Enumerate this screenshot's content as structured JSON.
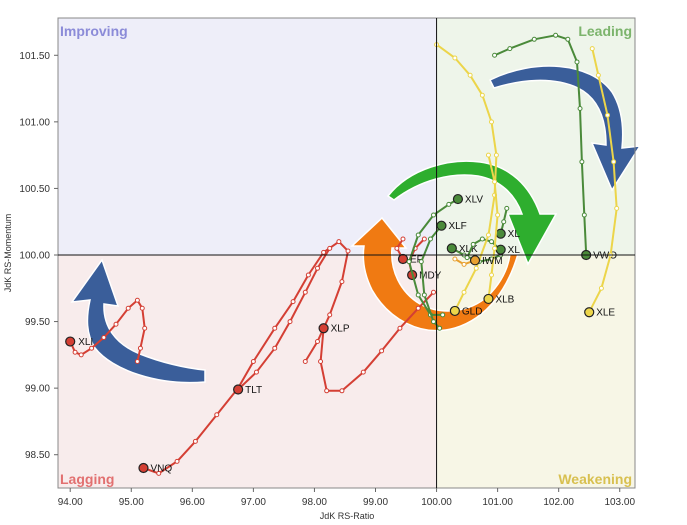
{
  "chart_data": {
    "type": "scatter",
    "title": "",
    "xlabel": "JdK RS-Ratio",
    "ylabel": "JdK RS-Momentum",
    "xlim": [
      93.8,
      103.25
    ],
    "ylim": [
      98.25,
      101.78
    ],
    "x_ticks": [
      "94.00",
      "95.00",
      "96.00",
      "97.00",
      "98.00",
      "99.00",
      "100.00",
      "101.00",
      "102.00",
      "103.00"
    ],
    "x_tick_values": [
      94,
      95,
      96,
      97,
      98,
      99,
      100,
      101,
      102,
      103
    ],
    "y_ticks": [
      "98.50",
      "99.00",
      "99.50",
      "100.00",
      "100.50",
      "101.00",
      "101.50"
    ],
    "y_tick_values": [
      98.5,
      99.0,
      99.5,
      100.0,
      100.5,
      101.0,
      101.5
    ],
    "center": [
      100,
      100
    ],
    "grid": false,
    "quadrants": {
      "improving": {
        "label": "Improving",
        "color": "#8b8bd8",
        "bg": "#eeeef9"
      },
      "leading": {
        "label": "Leading",
        "color": "#7cb46c",
        "bg": "#eef5ea"
      },
      "weakening": {
        "label": "Weakening",
        "color": "#d8c050",
        "bg": "#f7f6e6"
      },
      "lagging": {
        "label": "Lagging",
        "color": "#e27070",
        "bg": "#f8ecec"
      }
    },
    "colors": {
      "red": "#d43f34",
      "green": "#4a8a3a",
      "yellow": "#ecd54a",
      "orange": "#e8a030"
    },
    "series": [
      {
        "name": "XLI",
        "color": "red",
        "label_dx": 8,
        "points": [
          [
            94.0,
            99.35
          ],
          [
            94.08,
            99.27
          ],
          [
            94.18,
            99.25
          ],
          [
            94.35,
            99.3
          ],
          [
            94.55,
            99.38
          ],
          [
            94.75,
            99.48
          ],
          [
            94.95,
            99.6
          ],
          [
            95.1,
            99.66
          ],
          [
            95.18,
            99.6
          ],
          [
            95.22,
            99.45
          ],
          [
            95.15,
            99.3
          ],
          [
            95.1,
            99.2
          ]
        ]
      },
      {
        "name": "VNQ",
        "color": "red",
        "label_dx": 7,
        "points": [
          [
            95.2,
            98.4
          ],
          [
            95.45,
            98.36
          ],
          [
            95.75,
            98.45
          ],
          [
            96.05,
            98.6
          ],
          [
            96.4,
            98.8
          ],
          [
            96.75,
            99.0
          ],
          [
            97.0,
            99.2
          ],
          [
            97.35,
            99.45
          ],
          [
            97.65,
            99.65
          ],
          [
            97.9,
            99.85
          ],
          [
            98.15,
            100.02
          ],
          [
            98.4,
            100.1
          ],
          [
            98.55,
            100.03
          ],
          [
            98.45,
            99.8
          ],
          [
            98.25,
            99.55
          ],
          [
            98.05,
            99.35
          ],
          [
            97.85,
            99.2
          ]
        ]
      },
      {
        "name": "XLP",
        "color": "red",
        "label_dx": 7,
        "points": [
          [
            98.15,
            99.45
          ],
          [
            98.1,
            99.2
          ],
          [
            98.2,
            98.98
          ],
          [
            98.45,
            98.98
          ],
          [
            98.8,
            99.12
          ],
          [
            99.1,
            99.28
          ],
          [
            99.4,
            99.45
          ],
          [
            99.7,
            99.6
          ],
          [
            99.95,
            99.72
          ]
        ]
      },
      {
        "name": "TLT",
        "color": "red",
        "label_dx": 7,
        "points": [
          [
            96.75,
            98.99
          ],
          [
            97.05,
            99.12
          ],
          [
            97.35,
            99.3
          ],
          [
            97.6,
            99.5
          ],
          [
            97.85,
            99.72
          ],
          [
            98.05,
            99.9
          ],
          [
            98.25,
            100.05
          ]
        ]
      },
      {
        "name": "MDY",
        "color": "red",
        "label_dx": 7,
        "points": [
          [
            99.6,
            99.85
          ],
          [
            99.55,
            99.95
          ],
          [
            99.65,
            100.05
          ],
          [
            99.8,
            100.12
          ]
        ]
      },
      {
        "name": "EFA",
        "color": "red",
        "label_dx": 7,
        "points": [
          [
            99.45,
            99.97
          ],
          [
            99.35,
            100.05
          ],
          [
            99.45,
            100.12
          ]
        ]
      },
      {
        "name": "XLV",
        "color": "green",
        "label_dx": 7,
        "points": [
          [
            100.35,
            100.42
          ],
          [
            100.2,
            100.38
          ],
          [
            99.95,
            100.3
          ],
          [
            99.7,
            100.15
          ],
          [
            99.55,
            99.95
          ],
          [
            99.7,
            99.7
          ],
          [
            99.9,
            99.55
          ],
          [
            100.1,
            99.55
          ]
        ]
      },
      {
        "name": "XLF",
        "color": "green",
        "label_dx": 7,
        "points": [
          [
            100.08,
            100.22
          ],
          [
            99.9,
            100.12
          ],
          [
            99.75,
            99.95
          ],
          [
            99.8,
            99.7
          ],
          [
            99.95,
            99.5
          ],
          [
            100.05,
            99.45
          ]
        ]
      },
      {
        "name": "XLK",
        "color": "green",
        "label_dx": 7,
        "points": [
          [
            100.25,
            100.05
          ],
          [
            100.45,
            100.0
          ],
          [
            100.7,
            99.95
          ],
          [
            100.9,
            99.97
          ],
          [
            101.05,
            100.0
          ]
        ]
      },
      {
        "name": "XLU",
        "color": "green",
        "label_dx": 7,
        "points": [
          [
            101.05,
            100.16
          ],
          [
            101.1,
            100.25
          ],
          [
            101.15,
            100.35
          ]
        ]
      },
      {
        "name": "XLY",
        "color": "green",
        "label_dx": 7,
        "points": [
          [
            101.05,
            100.04
          ],
          [
            100.9,
            100.1
          ],
          [
            100.75,
            100.12
          ],
          [
            100.6,
            100.08
          ],
          [
            100.5,
            99.98
          ]
        ]
      },
      {
        "name": "VWO",
        "color": "green",
        "label_dx": 7,
        "points": [
          [
            102.45,
            100.0
          ],
          [
            102.42,
            100.3
          ],
          [
            102.38,
            100.7
          ],
          [
            102.35,
            101.1
          ],
          [
            102.3,
            101.45
          ],
          [
            102.15,
            101.62
          ],
          [
            101.95,
            101.65
          ],
          [
            101.6,
            101.62
          ],
          [
            101.2,
            101.55
          ],
          [
            100.95,
            101.5
          ]
        ]
      },
      {
        "name": "XLE",
        "color": "yellow",
        "label_dx": 7,
        "points": [
          [
            102.5,
            99.57
          ],
          [
            102.7,
            99.75
          ],
          [
            102.85,
            100.0
          ],
          [
            102.95,
            100.35
          ],
          [
            102.9,
            100.7
          ],
          [
            102.8,
            101.05
          ],
          [
            102.65,
            101.35
          ],
          [
            102.55,
            101.55
          ]
        ]
      },
      {
        "name": "GLD",
        "color": "yellow",
        "label_dx": 7,
        "points": [
          [
            100.3,
            99.58
          ],
          [
            100.45,
            99.72
          ],
          [
            100.65,
            99.9
          ],
          [
            100.85,
            100.15
          ],
          [
            100.95,
            100.45
          ],
          [
            100.98,
            100.75
          ],
          [
            100.9,
            101.0
          ],
          [
            100.75,
            101.2
          ],
          [
            100.55,
            101.35
          ],
          [
            100.3,
            101.48
          ],
          [
            100.0,
            101.58
          ]
        ]
      },
      {
        "name": "XLB",
        "color": "yellow",
        "label_dx": 7,
        "points": [
          [
            100.85,
            99.67
          ],
          [
            100.9,
            99.85
          ],
          [
            100.95,
            100.05
          ],
          [
            101.0,
            100.3
          ],
          [
            100.95,
            100.55
          ],
          [
            100.85,
            100.75
          ]
        ]
      },
      {
        "name": "IWM",
        "color": "orange",
        "label_dx": 7,
        "points": [
          [
            100.63,
            99.96
          ],
          [
            100.45,
            99.93
          ],
          [
            100.3,
            99.97
          ]
        ]
      }
    ],
    "label_text": [
      {
        "name": "XLV",
        "text": "XLV"
      },
      {
        "name": "XLF",
        "text": "XLF"
      },
      {
        "name": "XLK",
        "text": "XLK"
      },
      {
        "name": "XLY",
        "text": "XL"
      },
      {
        "name": "XLU",
        "text": "XL"
      },
      {
        "name": "VWO",
        "text": "VWO"
      },
      {
        "name": "XLE",
        "text": "XLE"
      },
      {
        "name": "GLD",
        "text": "GLD"
      },
      {
        "name": "XLB",
        "text": "XLB"
      },
      {
        "name": "MDY",
        "text": "MDY"
      },
      {
        "name": "EFA",
        "text": "EF"
      },
      {
        "name": "XLP",
        "text": "XLP"
      },
      {
        "name": "TLT",
        "text": "TLT"
      },
      {
        "name": "XLI",
        "text": "XLI"
      },
      {
        "name": "VNQ",
        "text": "VNQ"
      }
    ],
    "arrows": [
      {
        "name": "rotation-arrow-leading-to-weakening",
        "color": "#3a5e9a"
      },
      {
        "name": "rotation-arrow-lagging-to-improving",
        "color": "#3a5e9a"
      },
      {
        "name": "rotation-arrow-green-clockwise",
        "color": "#2eae2e"
      },
      {
        "name": "rotation-arrow-orange-clockwise",
        "color": "#f07a12"
      }
    ]
  }
}
